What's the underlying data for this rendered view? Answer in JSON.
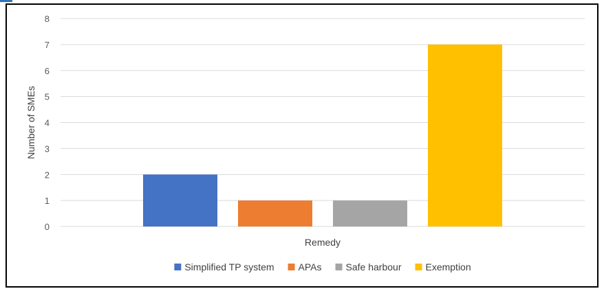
{
  "chart_data": {
    "type": "bar",
    "categories": [
      "Remedy"
    ],
    "series": [
      {
        "name": "Simplified TP system",
        "values": [
          2
        ],
        "color": "#4472c4"
      },
      {
        "name": "APAs",
        "values": [
          1
        ],
        "color": "#ed7d31"
      },
      {
        "name": "Safe harbour",
        "values": [
          1
        ],
        "color": "#a5a5a5"
      },
      {
        "name": "Exemption",
        "values": [
          7
        ],
        "color": "#ffc000"
      }
    ],
    "title": "",
    "xlabel": "Remedy",
    "ylabel": "Number of SMEs",
    "ylim": [
      0,
      8
    ],
    "yticks": [
      0,
      1,
      2,
      3,
      4,
      5,
      6,
      7,
      8
    ],
    "grid": true,
    "legend_position": "bottom",
    "colors": {
      "gridline": "#d9d9d9",
      "tick_text": "#595959",
      "frame": "#000000"
    }
  }
}
